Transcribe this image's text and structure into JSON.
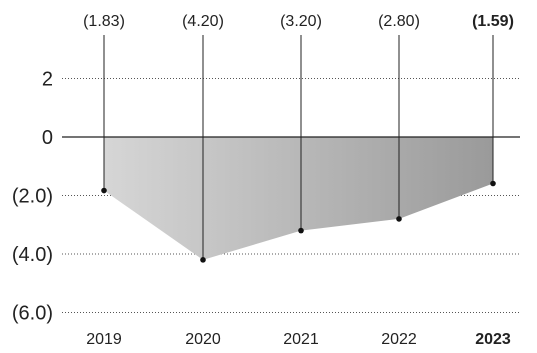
{
  "chart_data": {
    "type": "area",
    "x": [
      "2019",
      "2020",
      "2021",
      "2022",
      "2023"
    ],
    "values": [
      -1.83,
      -4.2,
      -3.2,
      -2.8,
      -1.59
    ],
    "value_labels": [
      "(1.83)",
      "(4.20)",
      "(3.20)",
      "(2.80)",
      "(1.59)"
    ],
    "highlight_index": 4,
    "y_ticks": [
      {
        "value": 2,
        "label": "2"
      },
      {
        "value": 0,
        "label": "0"
      },
      {
        "value": -2,
        "label": "(2.0)"
      },
      {
        "value": -4,
        "label": "(4.0)"
      },
      {
        "value": -6,
        "label": "(6.0)"
      }
    ],
    "ylim": [
      -6,
      2
    ],
    "grid": "dotted horizontal",
    "colors": {
      "fill_start": "#d6d6d6",
      "fill_end": "#9a9a9a",
      "line": "#222222",
      "grid": "#555555",
      "marker": "#111111"
    }
  }
}
